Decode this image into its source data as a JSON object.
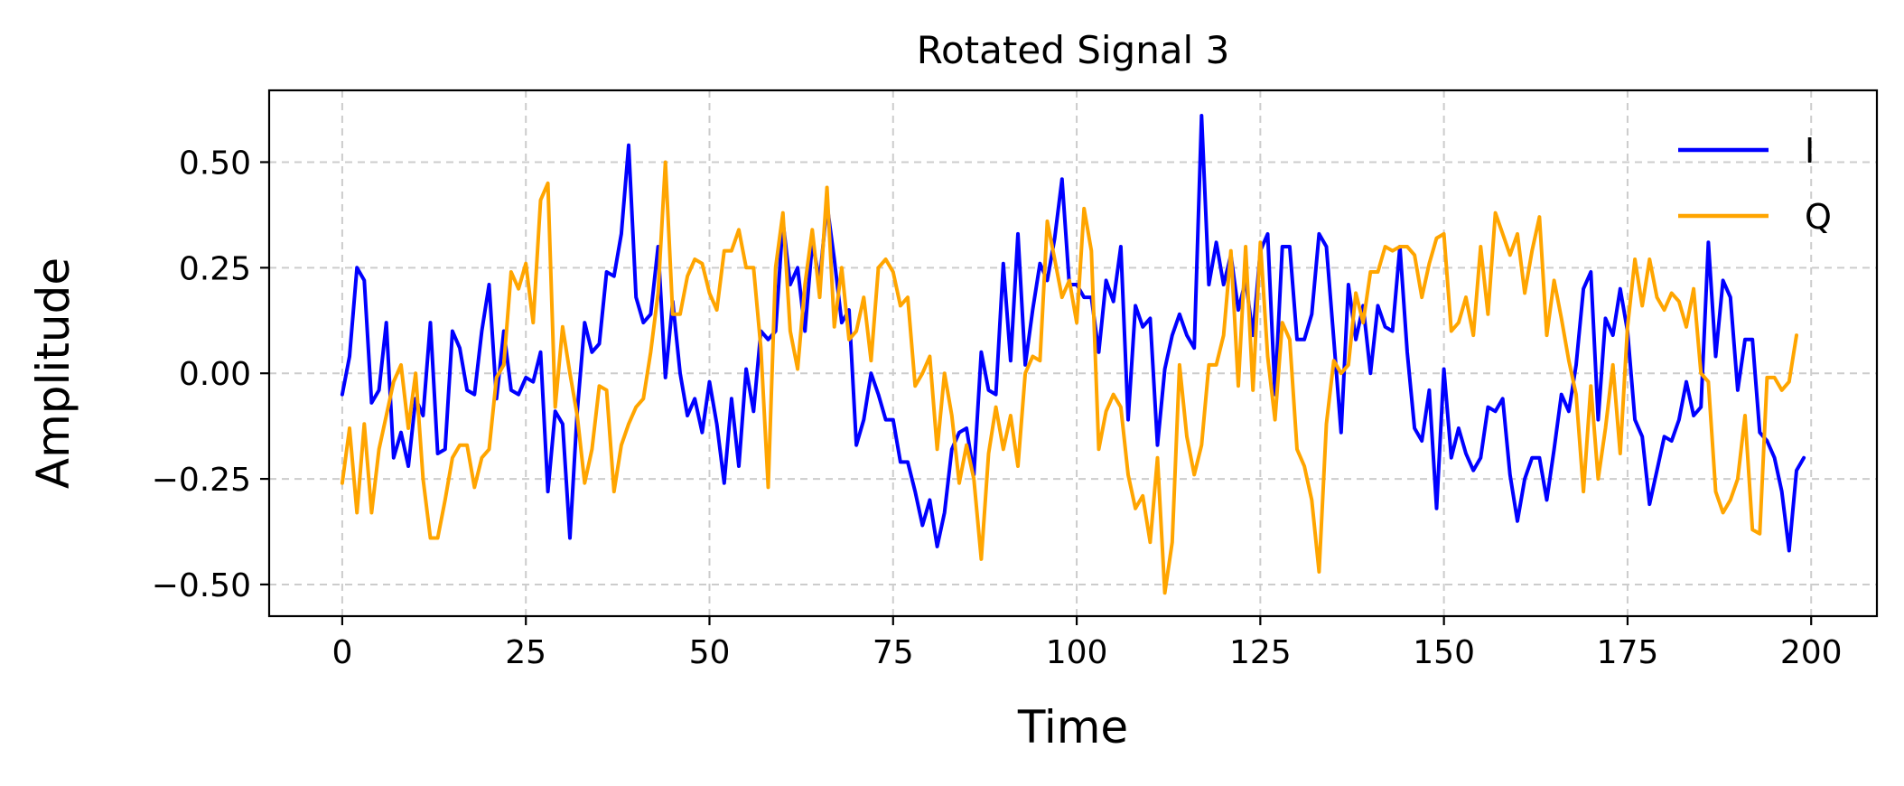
{
  "chart_data": {
    "type": "line",
    "title": "Rotated Signal 3",
    "xlabel": "Time",
    "ylabel": "Amplitude",
    "xlim": [
      -9.95,
      208.95
    ],
    "ylim": [
      -0.575,
      0.67
    ],
    "xticks": [
      0,
      25,
      50,
      75,
      100,
      125,
      150,
      175,
      200
    ],
    "xtick_labels": [
      "0",
      "25",
      "50",
      "75",
      "100",
      "125",
      "150",
      "175",
      "200"
    ],
    "yticks": [
      -0.5,
      -0.25,
      0,
      0.25,
      0.5
    ],
    "ytick_labels": [
      "−0.50",
      "−0.25",
      "0.00",
      "0.25",
      "0.50"
    ],
    "grid": true,
    "legend_position": "top-right",
    "series": [
      {
        "name": "I",
        "color": "#0000ff",
        "values": [
          -0.05,
          0.04,
          0.25,
          0.22,
          -0.07,
          -0.04,
          0.12,
          -0.2,
          -0.14,
          -0.22,
          -0.06,
          -0.1,
          0.12,
          -0.19,
          -0.18,
          0.1,
          0.06,
          -0.04,
          -0.05,
          0.1,
          0.21,
          -0.06,
          0.1,
          -0.04,
          -0.05,
          -0.01,
          -0.02,
          0.05,
          -0.28,
          -0.09,
          -0.12,
          -0.39,
          -0.09,
          0.12,
          0.05,
          0.07,
          0.24,
          0.23,
          0.33,
          0.54,
          0.18,
          0.12,
          0.14,
          0.3,
          -0.01,
          0.17,
          0.0,
          -0.1,
          -0.06,
          -0.14,
          -0.02,
          -0.12,
          -0.26,
          -0.06,
          -0.22,
          0.01,
          -0.09,
          0.1,
          0.08,
          0.1,
          0.36,
          0.21,
          0.25,
          0.1,
          0.31,
          0.22,
          0.4,
          0.27,
          0.12,
          0.15,
          -0.17,
          -0.11,
          0.0,
          -0.05,
          -0.11,
          -0.11,
          -0.21,
          -0.21,
          -0.28,
          -0.36,
          -0.3,
          -0.41,
          -0.33,
          -0.18,
          -0.14,
          -0.13,
          -0.24,
          0.05,
          -0.04,
          -0.05,
          0.26,
          0.03,
          0.33,
          0.02,
          0.15,
          0.26,
          0.22,
          0.32,
          0.46,
          0.21,
          0.21,
          0.18,
          0.18,
          0.05,
          0.22,
          0.17,
          0.3,
          -0.11,
          0.16,
          0.11,
          0.13,
          -0.17,
          0.01,
          0.09,
          0.14,
          0.09,
          0.06,
          0.61,
          0.21,
          0.31,
          0.21,
          0.28,
          0.15,
          0.22,
          0.09,
          0.29,
          0.33,
          -0.05,
          0.3,
          0.3,
          0.08,
          0.08,
          0.14,
          0.33,
          0.3,
          0.08,
          -0.14,
          0.21,
          0.08,
          0.16,
          0.0,
          0.16,
          0.11,
          0.1,
          0.3,
          0.05,
          -0.13,
          -0.16,
          -0.04,
          -0.32,
          0.01,
          -0.2,
          -0.13,
          -0.19,
          -0.23,
          -0.2,
          -0.08,
          -0.09,
          -0.06,
          -0.24,
          -0.35,
          -0.25,
          -0.2,
          -0.2,
          -0.3,
          -0.18,
          -0.05,
          -0.09,
          0.02,
          0.2,
          0.24,
          -0.11,
          0.13,
          0.09,
          0.2,
          0.1,
          -0.11,
          -0.15,
          -0.31,
          -0.23,
          -0.15,
          -0.16,
          -0.11,
          -0.02,
          -0.1,
          -0.08,
          0.31,
          0.04,
          0.22,
          0.18,
          -0.04,
          0.08,
          0.08,
          -0.14,
          -0.16,
          -0.2,
          -0.28,
          -0.42,
          -0.23,
          -0.2
        ]
      },
      {
        "name": "Q",
        "color": "#ffa500",
        "values": [
          -0.26,
          -0.13,
          -0.33,
          -0.12,
          -0.33,
          -0.18,
          -0.1,
          -0.02,
          0.02,
          -0.13,
          0.0,
          -0.25,
          -0.39,
          -0.39,
          -0.3,
          -0.2,
          -0.17,
          -0.17,
          -0.27,
          -0.2,
          -0.18,
          -0.01,
          0.02,
          0.24,
          0.2,
          0.26,
          0.12,
          0.41,
          0.45,
          -0.08,
          0.11,
          0.0,
          -0.1,
          -0.26,
          -0.18,
          -0.03,
          -0.04,
          -0.28,
          -0.17,
          -0.12,
          -0.08,
          -0.06,
          0.05,
          0.19,
          0.5,
          0.14,
          0.14,
          0.23,
          0.27,
          0.26,
          0.19,
          0.15,
          0.29,
          0.29,
          0.34,
          0.25,
          0.25,
          0.06,
          -0.27,
          0.25,
          0.38,
          0.1,
          0.01,
          0.21,
          0.34,
          0.18,
          0.44,
          0.11,
          0.25,
          0.08,
          0.1,
          0.18,
          0.03,
          0.25,
          0.27,
          0.24,
          0.16,
          0.18,
          -0.03,
          0.0,
          0.04,
          -0.18,
          0.0,
          -0.1,
          -0.26,
          -0.17,
          -0.25,
          -0.44,
          -0.19,
          -0.08,
          -0.18,
          -0.1,
          -0.22,
          0.0,
          0.04,
          0.03,
          0.36,
          0.27,
          0.18,
          0.22,
          0.12,
          0.39,
          0.29,
          -0.18,
          -0.09,
          -0.05,
          -0.08,
          -0.24,
          -0.32,
          -0.29,
          -0.4,
          -0.2,
          -0.52,
          -0.4,
          0.02,
          -0.15,
          -0.24,
          -0.17,
          0.02,
          0.02,
          0.09,
          0.29,
          -0.03,
          0.3,
          -0.04,
          0.31,
          0.04,
          -0.11,
          0.12,
          0.08,
          -0.18,
          -0.22,
          -0.3,
          -0.47,
          -0.12,
          0.03,
          0.0,
          0.02,
          0.19,
          0.12,
          0.24,
          0.24,
          0.3,
          0.29,
          0.3,
          0.3,
          0.28,
          0.18,
          0.26,
          0.32,
          0.33,
          0.1,
          0.12,
          0.18,
          0.09,
          0.3,
          0.14,
          0.38,
          0.33,
          0.28,
          0.33,
          0.19,
          0.29,
          0.37,
          0.09,
          0.22,
          0.13,
          0.03,
          -0.05,
          -0.28,
          -0.03,
          -0.25,
          -0.13,
          0.02,
          -0.19,
          0.11,
          0.27,
          0.16,
          0.27,
          0.18,
          0.15,
          0.19,
          0.17,
          0.11,
          0.2,
          0.0,
          -0.02,
          -0.28,
          -0.33,
          -0.3,
          -0.25,
          -0.1,
          -0.37,
          -0.38,
          -0.01,
          -0.01,
          -0.04,
          -0.02,
          0.09
        ]
      }
    ]
  }
}
